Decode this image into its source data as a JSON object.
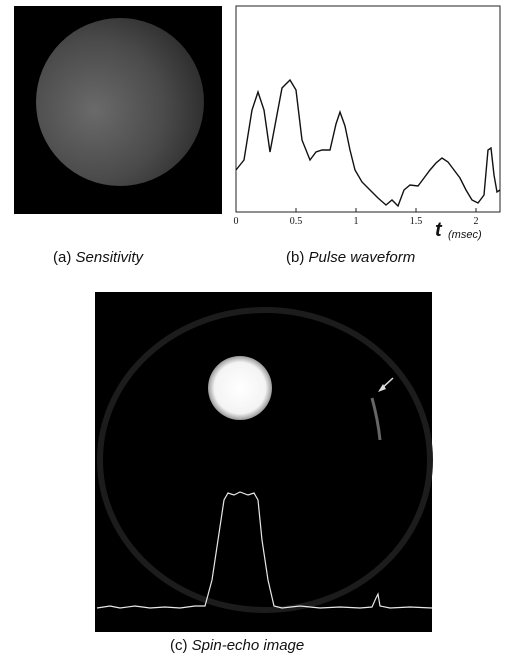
{
  "panels": [
    {
      "label": "(a)",
      "caption": "Sensitivity"
    },
    {
      "label": "(b)",
      "caption": "Pulse waveform",
      "axis_label": "t",
      "axis_unit": "(msec)",
      "xlim": [
        0,
        2.2
      ],
      "xticks": [
        0,
        0.5,
        1,
        1.5,
        2
      ]
    },
    {
      "label": "(c)",
      "caption": "Spin-echo image"
    }
  ]
}
